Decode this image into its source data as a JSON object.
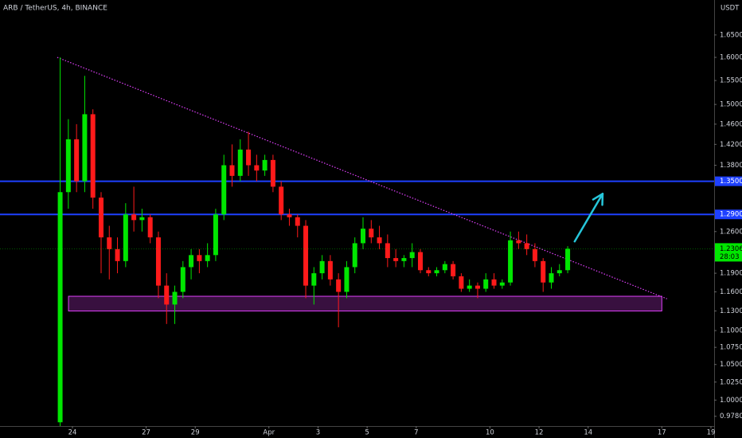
{
  "chart_data": {
    "type": "candlestick",
    "title": "ARB / TetherUS, 4h, BINANCE",
    "y_axis_label": "USDT",
    "log_scale": true,
    "up_color": "#00e600",
    "down_color": "#ff1a1a",
    "x": [
      23.5,
      23.833,
      24.167,
      24.5,
      24.833,
      25.167,
      25.5,
      25.833,
      26.167,
      26.5,
      26.833,
      27.167,
      27.5,
      27.833,
      28.167,
      28.5,
      28.833,
      29.167,
      29.5,
      29.833,
      30.167,
      30.5,
      30.833,
      31.167,
      31.5,
      31.833,
      32.167,
      32.5,
      32.833,
      33.167,
      33.5,
      33.833,
      34.167,
      34.5,
      34.833,
      35.167,
      35.5,
      35.833,
      36.167,
      36.5,
      36.833,
      37.167,
      37.5,
      37.833,
      38.167,
      38.5,
      38.833,
      39.167,
      39.5,
      39.833,
      40.167,
      40.5,
      40.833,
      41.167,
      41.5,
      41.833,
      42.167,
      42.5,
      42.833,
      43.167,
      43.5,
      43.833,
      44.167
    ],
    "open": [
      0.97,
      1.33,
      1.43,
      1.35,
      1.48,
      1.32,
      1.25,
      1.23,
      1.21,
      1.29,
      1.28,
      1.285,
      1.25,
      1.17,
      1.14,
      1.16,
      1.2,
      1.22,
      1.21,
      1.22,
      1.29,
      1.38,
      1.36,
      1.41,
      1.38,
      1.37,
      1.39,
      1.34,
      1.29,
      1.285,
      1.27,
      1.17,
      1.19,
      1.21,
      1.18,
      1.16,
      1.2,
      1.24,
      1.265,
      1.25,
      1.24,
      1.215,
      1.21,
      1.215,
      1.225,
      1.195,
      1.19,
      1.195,
      1.205,
      1.185,
      1.165,
      1.17,
      1.165,
      1.18,
      1.17,
      1.175,
      1.245,
      1.24,
      1.23,
      1.21,
      1.175,
      1.19,
      1.195
    ],
    "high": [
      1.6,
      1.47,
      1.46,
      1.56,
      1.49,
      1.33,
      1.27,
      1.25,
      1.31,
      1.34,
      1.3,
      1.29,
      1.26,
      1.19,
      1.17,
      1.21,
      1.23,
      1.23,
      1.24,
      1.3,
      1.4,
      1.42,
      1.43,
      1.445,
      1.4,
      1.4,
      1.4,
      1.35,
      1.3,
      1.29,
      1.28,
      1.2,
      1.22,
      1.22,
      1.19,
      1.21,
      1.25,
      1.285,
      1.28,
      1.27,
      1.255,
      1.23,
      1.22,
      1.24,
      1.23,
      1.2,
      1.2,
      1.21,
      1.21,
      1.19,
      1.18,
      1.175,
      1.19,
      1.19,
      1.18,
      1.26,
      1.26,
      1.255,
      1.24,
      1.215,
      1.2,
      1.205,
      1.235
    ],
    "low": [
      0.965,
      1.3,
      1.33,
      1.33,
      1.3,
      1.19,
      1.18,
      1.19,
      1.2,
      1.26,
      1.26,
      1.24,
      1.15,
      1.11,
      1.11,
      1.15,
      1.18,
      1.19,
      1.2,
      1.21,
      1.28,
      1.34,
      1.35,
      1.36,
      1.35,
      1.36,
      1.33,
      1.28,
      1.27,
      1.25,
      1.15,
      1.14,
      1.18,
      1.17,
      1.105,
      1.15,
      1.19,
      1.23,
      1.24,
      1.23,
      1.2,
      1.2,
      1.2,
      1.2,
      1.19,
      1.185,
      1.185,
      1.19,
      1.18,
      1.16,
      1.16,
      1.15,
      1.16,
      1.165,
      1.165,
      1.17,
      1.23,
      1.22,
      1.2,
      1.16,
      1.165,
      1.185,
      1.19
    ],
    "close": [
      1.33,
      1.43,
      1.35,
      1.48,
      1.32,
      1.25,
      1.23,
      1.21,
      1.29,
      1.28,
      1.285,
      1.25,
      1.17,
      1.14,
      1.16,
      1.2,
      1.22,
      1.21,
      1.22,
      1.29,
      1.38,
      1.36,
      1.41,
      1.38,
      1.37,
      1.39,
      1.34,
      1.29,
      1.285,
      1.27,
      1.17,
      1.19,
      1.21,
      1.18,
      1.16,
      1.2,
      1.24,
      1.265,
      1.25,
      1.24,
      1.215,
      1.21,
      1.215,
      1.225,
      1.195,
      1.19,
      1.195,
      1.205,
      1.185,
      1.165,
      1.17,
      1.165,
      1.18,
      1.17,
      1.175,
      1.245,
      1.24,
      1.23,
      1.21,
      1.175,
      1.19,
      1.195,
      1.2306
    ],
    "xlim": [
      21.05,
      50.13
    ],
    "xticks": [
      24,
      27,
      29,
      {
        "value": 32,
        "label": "Apr"
      },
      {
        "value": 34,
        "label": "3"
      },
      {
        "value": 36,
        "label": "5"
      },
      {
        "value": 38,
        "label": "7"
      },
      {
        "value": 41,
        "label": "10"
      },
      {
        "value": 43,
        "label": "12"
      },
      {
        "value": 45,
        "label": "14"
      },
      {
        "value": 48,
        "label": "17"
      },
      {
        "value": 50,
        "label": "19"
      }
    ],
    "ylim": [
      0.965,
      1.731
    ],
    "yticks": [
      {
        "value": 1.65,
        "label": "1.6500"
      },
      {
        "value": 1.6,
        "label": "1.6000"
      },
      {
        "value": 1.55,
        "label": "1.5500"
      },
      {
        "value": 1.5,
        "label": "1.5000"
      },
      {
        "value": 1.46,
        "label": "1.4600"
      },
      {
        "value": 1.42,
        "label": "1.4200"
      },
      {
        "value": 1.38,
        "label": "1.3800"
      },
      {
        "value": 1.26,
        "label": "1.2600"
      },
      {
        "value": 1.19,
        "label": "1.1900"
      },
      {
        "value": 1.16,
        "label": "1.1600"
      },
      {
        "value": 1.13,
        "label": "1.1300"
      },
      {
        "value": 1.1,
        "label": "1.1000"
      },
      {
        "value": 1.075,
        "label": "1.0750"
      },
      {
        "value": 1.05,
        "label": "1.0500"
      },
      {
        "value": 1.025,
        "label": "1.0250"
      },
      {
        "value": 1.0,
        "label": "1.0000"
      },
      {
        "value": 0.978,
        "label": "0.9780"
      }
    ],
    "levels": [
      {
        "value": 1.35,
        "label": "1.3500",
        "color": "#1e40ff"
      },
      {
        "value": 1.29,
        "label": "1.2900",
        "color": "#1e40ff"
      }
    ],
    "current_price": 1.2306,
    "countdown": "28:03",
    "current_color": "#00e600",
    "zone": {
      "x": [
        23.84,
        48.0
      ],
      "y": [
        1.13,
        1.153
      ],
      "color": "#e040fb"
    },
    "trendline": {
      "x": [
        23.38,
        48.21
      ],
      "y": [
        1.6,
        1.149
      ],
      "color": "#e040fb"
    },
    "arrow": {
      "x": [
        44.45,
        45.59
      ],
      "y": [
        1.243,
        1.327
      ],
      "color": "#26c6da"
    }
  }
}
